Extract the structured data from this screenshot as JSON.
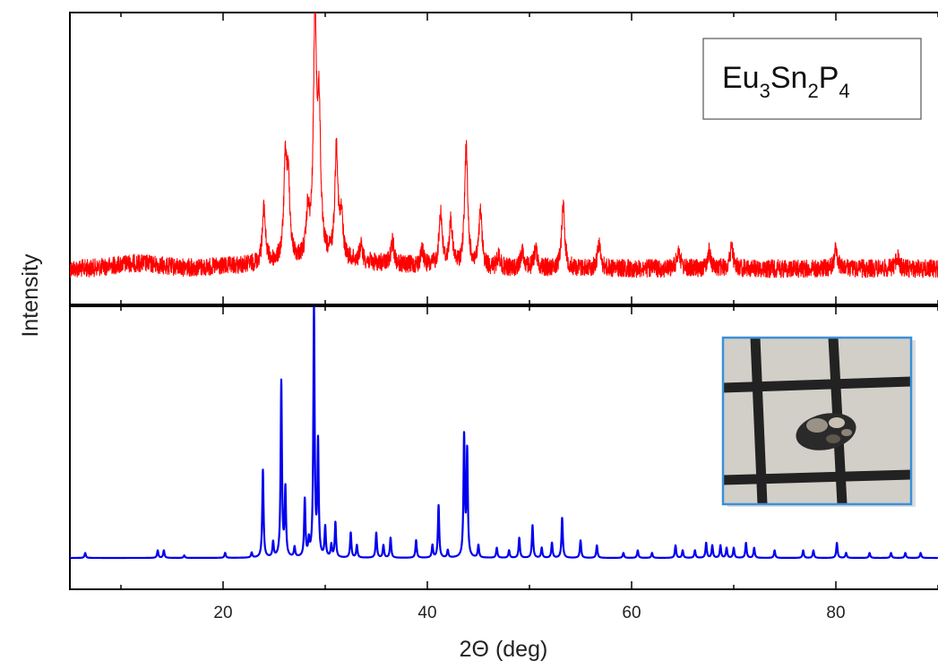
{
  "chart_data": {
    "type": "line",
    "xlabel": "2Θ (deg)",
    "ylabel": "Intensity",
    "xlim": [
      5,
      90
    ],
    "xticks": [
      20,
      40,
      60,
      80
    ],
    "grid": false,
    "panels": [
      {
        "name": "top",
        "series": [
          {
            "kind": "measured",
            "color": "#ff0000",
            "baseline": 0.1,
            "peaks": [
              {
                "x": 24.0,
                "y": 0.22
              },
              {
                "x": 26.1,
                "y": 0.38
              },
              {
                "x": 26.4,
                "y": 0.28
              },
              {
                "x": 28.3,
                "y": 0.17
              },
              {
                "x": 29.0,
                "y": 0.95
              },
              {
                "x": 29.4,
                "y": 0.55
              },
              {
                "x": 31.1,
                "y": 0.45
              },
              {
                "x": 31.6,
                "y": 0.16
              },
              {
                "x": 33.5,
                "y": 0.06
              },
              {
                "x": 36.6,
                "y": 0.09
              },
              {
                "x": 39.5,
                "y": 0.06
              },
              {
                "x": 41.3,
                "y": 0.22
              },
              {
                "x": 42.3,
                "y": 0.18
              },
              {
                "x": 43.8,
                "y": 0.48
              },
              {
                "x": 45.2,
                "y": 0.22
              },
              {
                "x": 47.0,
                "y": 0.05
              },
              {
                "x": 49.3,
                "y": 0.07
              },
              {
                "x": 50.6,
                "y": 0.08
              },
              {
                "x": 53.3,
                "y": 0.26
              },
              {
                "x": 56.8,
                "y": 0.1
              },
              {
                "x": 64.6,
                "y": 0.08
              },
              {
                "x": 67.6,
                "y": 0.07
              },
              {
                "x": 69.8,
                "y": 0.09
              },
              {
                "x": 80.0,
                "y": 0.08
              },
              {
                "x": 86.0,
                "y": 0.05
              }
            ]
          }
        ],
        "legend": {
          "parts": [
            "Eu",
            "3",
            "Sn",
            "2",
            "P",
            "4"
          ],
          "placement": "top-right"
        }
      },
      {
        "name": "bottom",
        "series": [
          {
            "kind": "calculated",
            "color": "#0000ee",
            "baseline": 0.02,
            "peaks": [
              {
                "x": 6.5,
                "y": 0.02
              },
              {
                "x": 13.6,
                "y": 0.03
              },
              {
                "x": 14.2,
                "y": 0.03
              },
              {
                "x": 16.2,
                "y": 0.01
              },
              {
                "x": 20.2,
                "y": 0.02
              },
              {
                "x": 22.8,
                "y": 0.02
              },
              {
                "x": 23.9,
                "y": 0.35
              },
              {
                "x": 24.9,
                "y": 0.06
              },
              {
                "x": 25.7,
                "y": 0.7
              },
              {
                "x": 26.1,
                "y": 0.27
              },
              {
                "x": 27.0,
                "y": 0.04
              },
              {
                "x": 28.0,
                "y": 0.23
              },
              {
                "x": 28.4,
                "y": 0.06
              },
              {
                "x": 28.9,
                "y": 1.0
              },
              {
                "x": 29.3,
                "y": 0.45
              },
              {
                "x": 30.0,
                "y": 0.12
              },
              {
                "x": 30.6,
                "y": 0.05
              },
              {
                "x": 31.0,
                "y": 0.14
              },
              {
                "x": 32.5,
                "y": 0.1
              },
              {
                "x": 33.1,
                "y": 0.05
              },
              {
                "x": 35.0,
                "y": 0.1
              },
              {
                "x": 35.7,
                "y": 0.05
              },
              {
                "x": 36.4,
                "y": 0.08
              },
              {
                "x": 38.9,
                "y": 0.07
              },
              {
                "x": 40.5,
                "y": 0.05
              },
              {
                "x": 41.1,
                "y": 0.21
              },
              {
                "x": 42.0,
                "y": 0.03
              },
              {
                "x": 43.6,
                "y": 0.48
              },
              {
                "x": 43.9,
                "y": 0.42
              },
              {
                "x": 45.0,
                "y": 0.05
              },
              {
                "x": 46.8,
                "y": 0.04
              },
              {
                "x": 48.0,
                "y": 0.03
              },
              {
                "x": 49.0,
                "y": 0.08
              },
              {
                "x": 50.3,
                "y": 0.13
              },
              {
                "x": 51.2,
                "y": 0.04
              },
              {
                "x": 52.2,
                "y": 0.06
              },
              {
                "x": 53.2,
                "y": 0.16
              },
              {
                "x": 55.0,
                "y": 0.07
              },
              {
                "x": 56.6,
                "y": 0.05
              },
              {
                "x": 59.2,
                "y": 0.02
              },
              {
                "x": 60.6,
                "y": 0.03
              },
              {
                "x": 62.0,
                "y": 0.02
              },
              {
                "x": 64.3,
                "y": 0.05
              },
              {
                "x": 65.0,
                "y": 0.03
              },
              {
                "x": 66.2,
                "y": 0.03
              },
              {
                "x": 67.3,
                "y": 0.06
              },
              {
                "x": 67.9,
                "y": 0.05
              },
              {
                "x": 68.7,
                "y": 0.05
              },
              {
                "x": 69.3,
                "y": 0.04
              },
              {
                "x": 70.0,
                "y": 0.04
              },
              {
                "x": 71.2,
                "y": 0.06
              },
              {
                "x": 72.0,
                "y": 0.04
              },
              {
                "x": 74.0,
                "y": 0.03
              },
              {
                "x": 76.8,
                "y": 0.03
              },
              {
                "x": 77.8,
                "y": 0.03
              },
              {
                "x": 80.1,
                "y": 0.06
              },
              {
                "x": 81.0,
                "y": 0.02
              },
              {
                "x": 83.3,
                "y": 0.02
              },
              {
                "x": 85.4,
                "y": 0.02
              },
              {
                "x": 86.8,
                "y": 0.02
              },
              {
                "x": 88.3,
                "y": 0.02
              }
            ]
          }
        ],
        "inset": {
          "kind": "photo",
          "subject": "crystal on grid paper",
          "border_color": "#3b8fd8"
        }
      }
    ]
  }
}
